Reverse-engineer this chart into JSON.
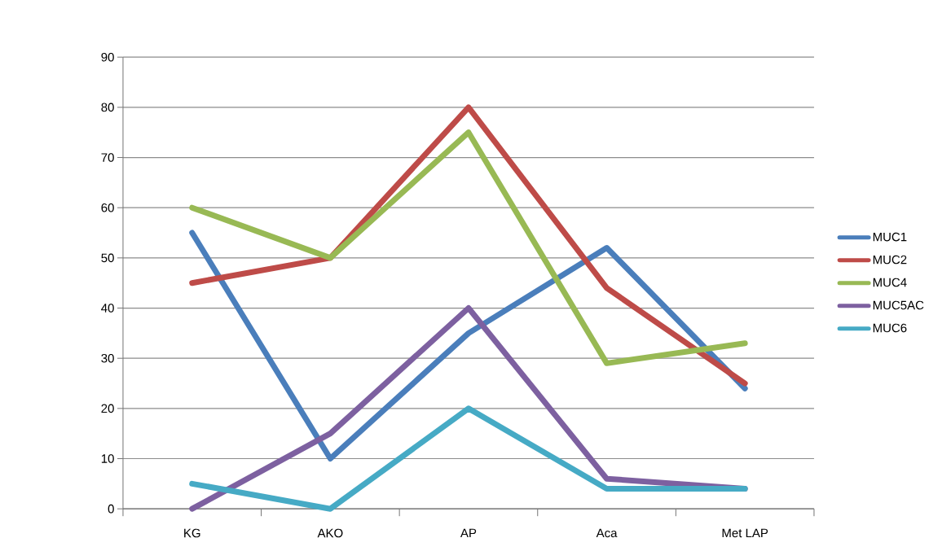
{
  "chart_data": {
    "type": "line",
    "categories": [
      "KG",
      "AKO",
      "AP",
      "Aca",
      "Met LAP"
    ],
    "series": [
      {
        "name": "MUC1",
        "color": "#4a7ebb",
        "values": [
          55,
          10,
          35,
          52,
          24
        ]
      },
      {
        "name": "MUC2",
        "color": "#be4b48",
        "values": [
          45,
          50,
          80,
          44,
          25
        ]
      },
      {
        "name": "MUC4",
        "color": "#98b954",
        "values": [
          60,
          50,
          75,
          29,
          33
        ]
      },
      {
        "name": "MUC5AC",
        "color": "#7d60a0",
        "values": [
          0,
          15,
          40,
          6,
          4
        ]
      },
      {
        "name": "MUC6",
        "color": "#46aac5",
        "values": [
          5,
          0,
          20,
          4,
          4
        ]
      }
    ],
    "ylim": [
      0,
      90
    ],
    "yticks": [
      0,
      10,
      20,
      30,
      40,
      50,
      60,
      70,
      80,
      90
    ],
    "grid": "y",
    "legend": "right",
    "marker": "none",
    "line_style": "solid"
  }
}
